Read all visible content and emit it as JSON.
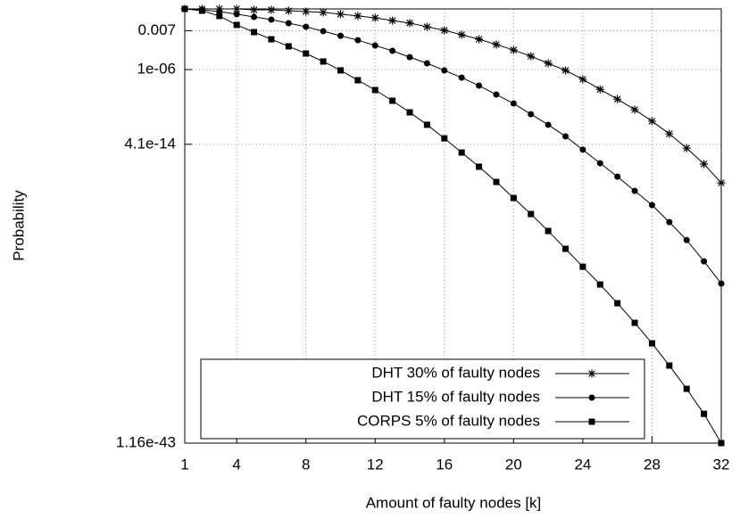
{
  "chart_data": {
    "type": "line",
    "x_label": "Amount of faulty nodes [k]",
    "y_label": "Probability",
    "x": [
      1,
      2,
      3,
      4,
      5,
      6,
      7,
      8,
      9,
      10,
      11,
      12,
      13,
      14,
      15,
      16,
      17,
      18,
      19,
      20,
      21,
      22,
      23,
      24,
      25,
      26,
      27,
      28,
      29,
      30,
      31,
      32
    ],
    "xlim": [
      1,
      32
    ],
    "xticks": [
      1,
      4,
      8,
      12,
      16,
      20,
      24,
      28,
      32
    ],
    "ylim": [
      1.16e-43,
      1
    ],
    "yticks": [
      1.16e-43,
      4.1e-14,
      {
        "value": 1e-06,
        "label": "1e-06"
      },
      0.007
    ],
    "y_log": true,
    "grid": true,
    "legend_position": "lower-left",
    "series": [
      {
        "name": "DHT 30% of faulty nodes",
        "color": "#000000",
        "marker": "star",
        "values": [
          1,
          1,
          1,
          1,
          0.81,
          0.81,
          0.66,
          0.55,
          0.45,
          0.3,
          0.2,
          0.13,
          0.07,
          0.04,
          0.017,
          0.0076,
          0.0028,
          0.001,
          0.0003,
          8.7e-05,
          2.1e-05,
          4.2e-06,
          8.3e-07,
          1.1e-07,
          1.1e-08,
          1.2e-09,
          1.1e-10,
          7.9e-12,
          4.5e-13,
          1.7e-14,
          4.6e-16,
          6.3e-18
        ]
      },
      {
        "name": "DHT 15% of faulty nodes",
        "color": "#000000",
        "marker": "circle",
        "values": [
          1,
          0.81,
          0.55,
          0.3,
          0.16,
          0.087,
          0.039,
          0.017,
          0.0063,
          0.0022,
          0.00081,
          0.00024,
          7.2e-05,
          1.7e-05,
          4.2e-06,
          8.3e-07,
          1.6e-07,
          2.6e-08,
          3.4e-09,
          4.5e-10,
          3.9e-11,
          3.5e-12,
          2.5e-13,
          1.2e-14,
          5.5e-16,
          2.6e-17,
          1e-18,
          4e-20,
          8.3e-22,
          1.4e-23,
          1.1e-25,
          6.9e-28
        ]
      },
      {
        "name": "CORPS 5% of faulty nodes",
        "color": "#000000",
        "marker": "square",
        "values": [
          1,
          0.66,
          0.2,
          0.026,
          0.0051,
          0.001,
          0.0002,
          3.9e-05,
          6.3e-06,
          8.3e-07,
          8.9e-08,
          9.5e-09,
          8.3e-10,
          5.9e-11,
          3.5e-12,
          1.6e-13,
          6.3e-15,
          2.5e-16,
          7.8e-18,
          2e-19,
          5.2e-21,
          1.1e-22,
          1.9e-24,
          3.2e-26,
          5.6e-28,
          7.9e-30,
          9.1e-32,
          8.5e-34,
          5.4e-36,
          2.7e-38,
          9.1e-41,
          1.16e-43
        ]
      }
    ]
  }
}
